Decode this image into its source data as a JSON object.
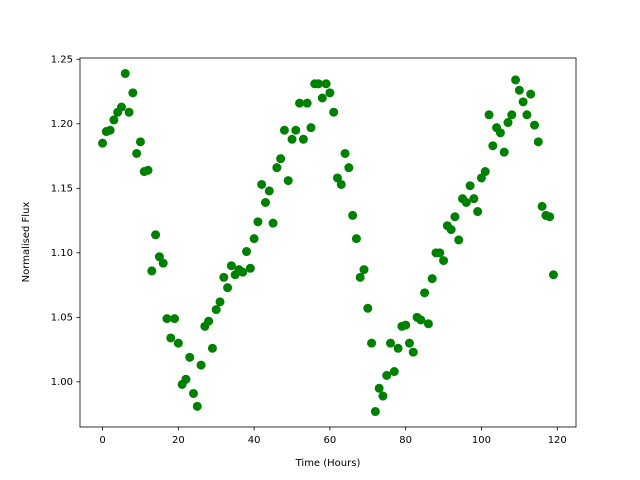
{
  "chart_data": {
    "type": "scatter",
    "x_label": "Time (Hours)",
    "y_label": "Normalised Flux",
    "series": [
      {
        "color": "#008000",
        "x": [
          0,
          1,
          2,
          3,
          4,
          5,
          6,
          7,
          8,
          9,
          10,
          11,
          12,
          13,
          14,
          15,
          16,
          17,
          18,
          19,
          20,
          21,
          22,
          23,
          24,
          25,
          26,
          27,
          28,
          29,
          30,
          31,
          32,
          33,
          34,
          35,
          36,
          37,
          38,
          39,
          40,
          41,
          42,
          43,
          44,
          45,
          46,
          47,
          48,
          49,
          50,
          51,
          52,
          53,
          54,
          55,
          56,
          57,
          58,
          59,
          60,
          61,
          62,
          63,
          64,
          65,
          66,
          67,
          68,
          69,
          70,
          71,
          72,
          73,
          74,
          75,
          76,
          77,
          78,
          79,
          80,
          81,
          82,
          83,
          84,
          85,
          86,
          87,
          88,
          89,
          90,
          91,
          92,
          93,
          94,
          95,
          96,
          97,
          98,
          99,
          100,
          101,
          102,
          103,
          104,
          105,
          106,
          107,
          108,
          109,
          110,
          111,
          112,
          113,
          114,
          115,
          116,
          117,
          118,
          119
        ],
        "values": [
          1.185,
          1.194,
          1.195,
          1.203,
          1.209,
          1.213,
          1.239,
          1.209,
          1.224,
          1.177,
          1.186,
          1.163,
          1.164,
          1.086,
          1.114,
          1.097,
          1.092,
          1.049,
          1.034,
          1.049,
          1.03,
          0.998,
          1.002,
          1.019,
          0.991,
          0.981,
          1.013,
          1.043,
          1.047,
          1.026,
          1.056,
          1.062,
          1.081,
          1.073,
          1.09,
          1.083,
          1.087,
          1.085,
          1.101,
          1.088,
          1.111,
          1.124,
          1.153,
          1.139,
          1.148,
          1.123,
          1.166,
          1.173,
          1.195,
          1.156,
          1.188,
          1.195,
          1.216,
          1.188,
          1.216,
          1.197,
          1.231,
          1.231,
          1.22,
          1.231,
          1.224,
          1.209,
          1.158,
          1.153,
          1.177,
          1.166,
          1.129,
          1.111,
          1.081,
          1.087,
          1.057,
          1.03,
          0.977,
          0.995,
          0.989,
          1.005,
          1.03,
          1.008,
          1.026,
          1.043,
          1.044,
          1.03,
          1.023,
          1.05,
          1.048,
          1.069,
          1.045,
          1.08,
          1.1,
          1.1,
          1.094,
          1.121,
          1.118,
          1.128,
          1.11,
          1.142,
          1.139,
          1.152,
          1.142,
          1.132,
          1.158,
          1.163,
          1.207,
          1.183,
          1.197,
          1.193,
          1.178,
          1.201,
          1.207,
          1.234,
          1.226,
          1.217,
          1.207,
          1.223,
          1.199,
          1.186,
          1.136,
          1.129,
          1.128,
          1.083
        ]
      }
    ],
    "xlim": [
      -5.95,
      124.95
    ],
    "xticks": [
      0,
      20,
      40,
      60,
      80,
      100,
      120
    ],
    "ylim": [
      0.965,
      1.251
    ],
    "yticks": [
      {
        "value": 1.0,
        "label": "1.00"
      },
      1.05,
      {
        "value": 1.1,
        "label": "1.10"
      },
      1.15,
      {
        "value": 1.2,
        "label": "1.20"
      },
      1.25
    ]
  }
}
